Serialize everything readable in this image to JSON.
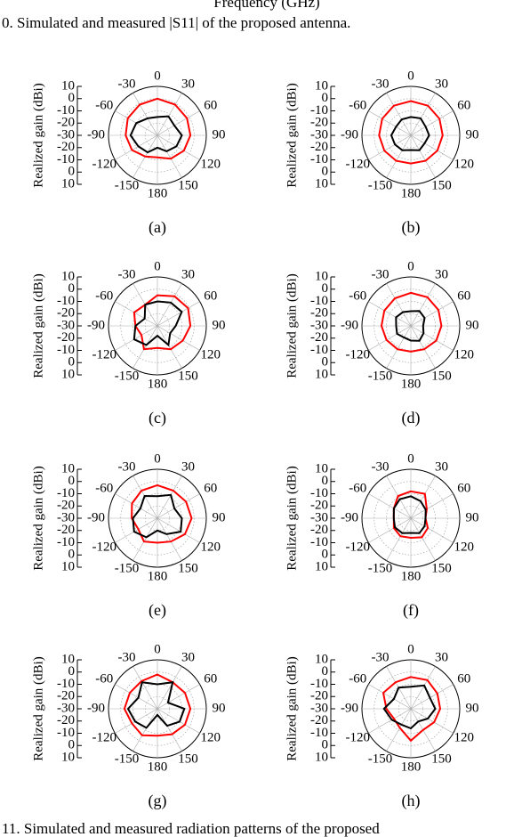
{
  "header_fragment": "Frequency (GHz)",
  "caption_top": "0. Simulated and measured |S11| of the proposed antenna.",
  "caption_bottom": "11.   Simulated and measured radiation patterns of the proposed",
  "chart_data": [
    {
      "type": "polar",
      "label": "(a)",
      "y_label": "Realized gain (dBi)",
      "rlim": [
        -30,
        10
      ],
      "rticks": [
        -30,
        -20,
        -10,
        0,
        10
      ],
      "x": [
        0,
        30,
        60,
        90,
        120,
        150,
        180,
        -150,
        -120,
        -90,
        -60,
        -30
      ],
      "series": [
        {
          "color": "#ff0000",
          "values": [
            0,
            -1,
            -2,
            -3,
            -5,
            -8,
            -12,
            -10,
            -6,
            -4,
            -2,
            -1
          ]
        },
        {
          "color": "#000000",
          "values": [
            -15,
            -12,
            -14,
            -10,
            -12,
            -15,
            -20,
            -14,
            -12,
            -8,
            -10,
            -14
          ]
        }
      ]
    },
    {
      "type": "polar",
      "label": "(b)",
      "y_label": "Realized gain (dBi)",
      "rlim": [
        -30,
        10
      ],
      "rticks": [
        -30,
        -20,
        -10,
        0,
        10
      ],
      "x": [
        0,
        30,
        60,
        90,
        120,
        150,
        180,
        -150,
        -120,
        -90,
        -60,
        -30
      ],
      "series": [
        {
          "color": "#ff0000",
          "values": [
            -2,
            -2,
            -3,
            -4,
            -5,
            -6,
            -7,
            -6,
            -5,
            -4,
            -3,
            -2
          ]
        },
        {
          "color": "#000000",
          "values": [
            -15,
            -14,
            -16,
            -15,
            -17,
            -16,
            -18,
            -16,
            -15,
            -14,
            -16,
            -15
          ]
        }
      ]
    },
    {
      "type": "polar",
      "label": "(c)",
      "y_label": "Realized gain (dBi)",
      "rlim": [
        -30,
        10
      ],
      "rticks": [
        -30,
        -20,
        -10,
        0,
        10
      ],
      "x": [
        0,
        30,
        60,
        90,
        120,
        150,
        180,
        -150,
        -120,
        -90,
        -60,
        -30
      ],
      "series": [
        {
          "color": "#ff0000",
          "values": [
            -5,
            -2,
            -1,
            -3,
            -6,
            -8,
            -12,
            -8,
            -15,
            -12,
            -8,
            -10
          ]
        },
        {
          "color": "#000000",
          "values": [
            -10,
            -8,
            -7,
            -15,
            -18,
            -12,
            -22,
            -12,
            -8,
            -12,
            -18,
            -10
          ]
        }
      ]
    },
    {
      "type": "polar",
      "label": "(d)",
      "y_label": "Realized gain (dBi)",
      "rlim": [
        -30,
        10
      ],
      "rticks": [
        -30,
        -20,
        -10,
        0,
        10
      ],
      "x": [
        0,
        30,
        60,
        90,
        120,
        150,
        180,
        -150,
        -120,
        -90,
        -60,
        -30
      ],
      "series": [
        {
          "color": "#ff0000",
          "values": [
            -3,
            -3,
            -4,
            -5,
            -6,
            -8,
            -9,
            -8,
            -7,
            -6,
            -5,
            -4
          ]
        },
        {
          "color": "#000000",
          "values": [
            -18,
            -16,
            -17,
            -20,
            -18,
            -16,
            -18,
            -19,
            -17,
            -18,
            -16,
            -17
          ]
        }
      ]
    },
    {
      "type": "polar",
      "label": "(e)",
      "y_label": "Realized gain (dBi)",
      "rlim": [
        -30,
        10
      ],
      "rticks": [
        -30,
        -20,
        -10,
        0,
        10
      ],
      "x": [
        0,
        30,
        60,
        90,
        120,
        150,
        180,
        -150,
        -120,
        -90,
        -60,
        -30
      ],
      "series": [
        {
          "color": "#ff0000",
          "values": [
            -3,
            -4,
            -3,
            -2,
            -4,
            -8,
            -10,
            -8,
            -12,
            -9,
            -6,
            -4
          ]
        },
        {
          "color": "#000000",
          "values": [
            -12,
            -8,
            -14,
            -10,
            -8,
            -15,
            -20,
            -12,
            -8,
            -10,
            -14,
            -9
          ]
        }
      ]
    },
    {
      "type": "polar",
      "label": "(f)",
      "y_label": "Realized gain (dBi)",
      "rlim": [
        -30,
        10
      ],
      "rticks": [
        -30,
        -20,
        -10,
        0,
        10
      ],
      "x": [
        0,
        30,
        60,
        90,
        120,
        150,
        180,
        -150,
        -120,
        -90,
        -60,
        -30
      ],
      "series": [
        {
          "color": "#ff0000",
          "values": [
            -8,
            -7,
            -15,
            -18,
            -14,
            -12,
            -14,
            -13,
            -14,
            -16,
            -14,
            -9
          ]
        },
        {
          "color": "#000000",
          "values": [
            -12,
            -14,
            -16,
            -18,
            -17,
            -16,
            -18,
            -16,
            -15,
            -16,
            -14,
            -12
          ]
        }
      ]
    },
    {
      "type": "polar",
      "label": "(g)",
      "y_label": "Realized gain (dBi)",
      "rlim": [
        -30,
        10
      ],
      "rticks": [
        -30,
        -20,
        -10,
        0,
        10
      ],
      "x": [
        0,
        30,
        60,
        90,
        120,
        150,
        180,
        -150,
        -120,
        -90,
        -60,
        -30
      ],
      "series": [
        {
          "color": "#ff0000",
          "values": [
            -2,
            -5,
            -4,
            -3,
            -4,
            -6,
            -8,
            -5,
            -6,
            -3,
            -4,
            -4
          ]
        },
        {
          "color": "#000000",
          "values": [
            -10,
            -5,
            -20,
            -8,
            -9,
            -14,
            -25,
            -12,
            -9,
            -6,
            -12,
            -5
          ]
        }
      ]
    },
    {
      "type": "polar",
      "label": "(h)",
      "y_label": "Realized gain (dBi)",
      "rlim": [
        -30,
        10
      ],
      "rticks": [
        -30,
        -20,
        -10,
        0,
        10
      ],
      "x": [
        0,
        30,
        60,
        90,
        120,
        150,
        180,
        -150,
        -120,
        -90,
        -60,
        -30
      ],
      "series": [
        {
          "color": "#ff0000",
          "values": [
            -4,
            -3,
            -5,
            -6,
            -8,
            -10,
            -4,
            -12,
            -14,
            -10,
            -4,
            -5
          ]
        },
        {
          "color": "#000000",
          "values": [
            -12,
            -8,
            -12,
            -10,
            -14,
            -18,
            -14,
            -15,
            -12,
            -8,
            -14,
            -10
          ]
        }
      ]
    }
  ]
}
